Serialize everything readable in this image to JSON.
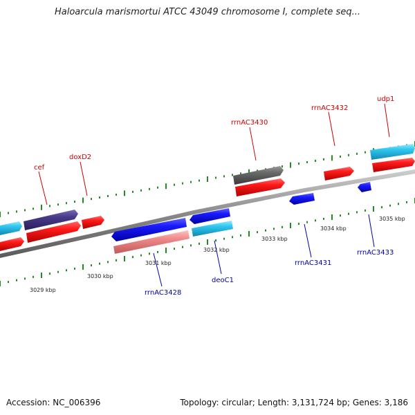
{
  "title": "Haloarcula marismortui ATCC 43049 chromosome I, complete seq...",
  "accession": "Accession: NC_006396",
  "stats": "Topology: circular; Length: 3,131,724 bp; Genes: 3,186",
  "ticks": [
    "3029 kbp",
    "3030 kbp",
    "3031 kbp",
    "3032 kbp",
    "3033 kbp",
    "3034 kbp",
    "3035 kbp"
  ],
  "labels_top": [
    "cef",
    "doxD2",
    "rrnAC3430",
    "rrnAC3432",
    "udp1"
  ],
  "labels_bottom": [
    "rrnAC3428",
    "deoC1",
    "rrnAC3431",
    "rrnAC3433"
  ],
  "colors": {
    "backbone": "#8a8a8a",
    "top_label": "#cc0000",
    "bottom_label": "#0000aa",
    "tick": "#228b22"
  }
}
